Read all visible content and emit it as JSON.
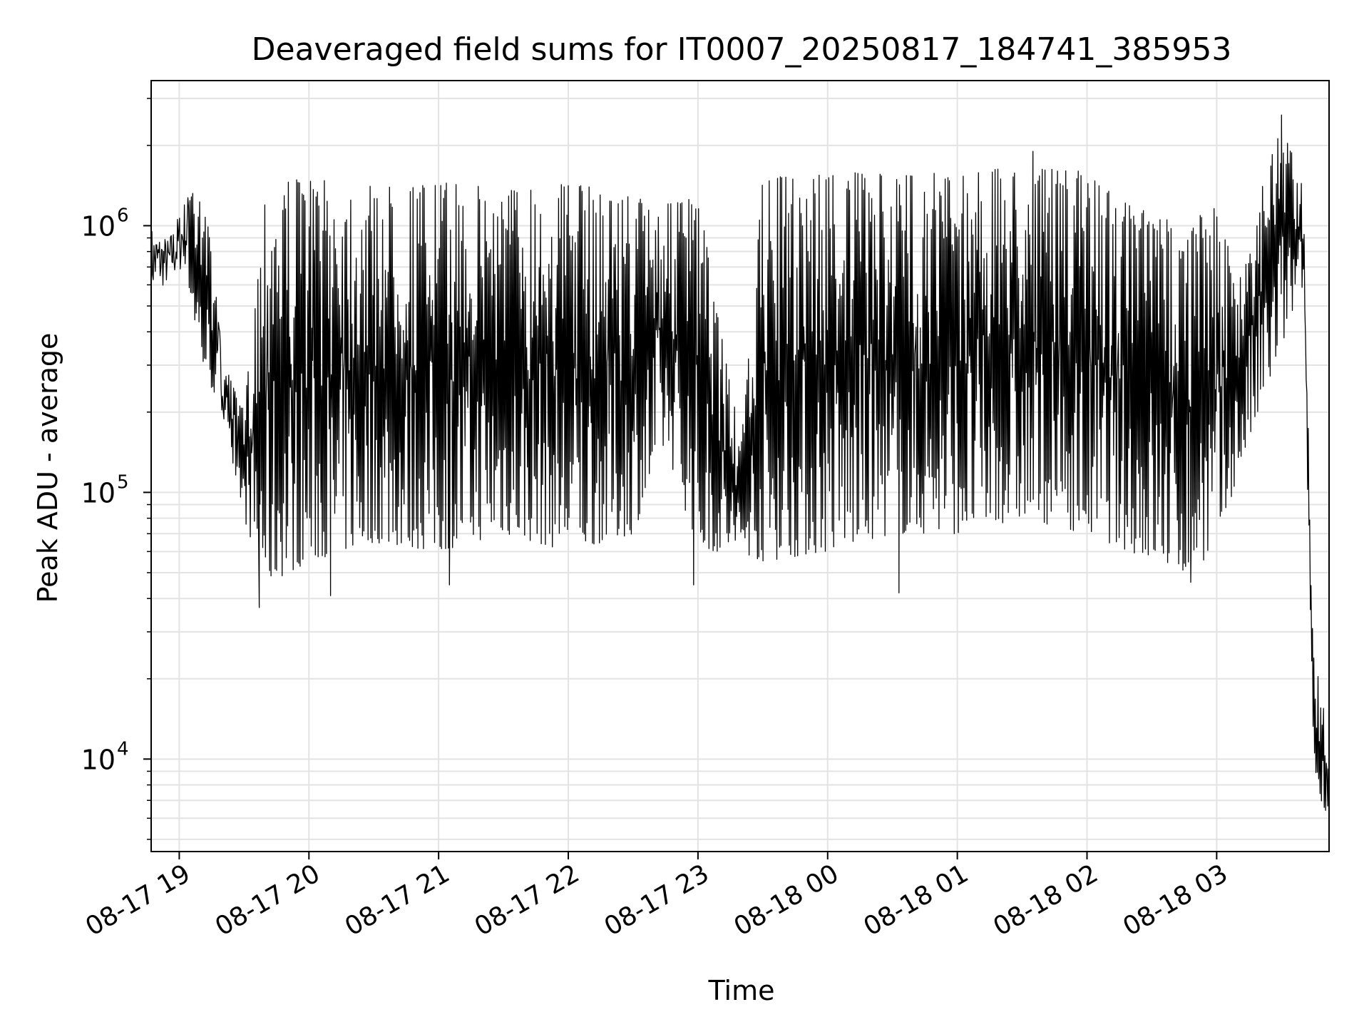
{
  "chart_data": {
    "type": "line",
    "title": "Deaveraged field sums for IT0007_20250817_184741_385953",
    "xlabel": "Time",
    "ylabel": "Peak ADU - average",
    "yscale": "log",
    "ylim": [
      4500,
      3500000
    ],
    "xlim": [
      "2025-08-17 18:47",
      "2025-08-18 03:52"
    ],
    "x_ticks": [
      "2025-08-17 19:00",
      "2025-08-17 20:00",
      "2025-08-17 21:00",
      "2025-08-17 22:00",
      "2025-08-17 23:00",
      "2025-08-18 00:00",
      "2025-08-18 01:00",
      "2025-08-18 02:00",
      "2025-08-18 03:00"
    ],
    "x_tick_labels": [
      "08-17 19",
      "08-17 20",
      "08-17 21",
      "08-17 22",
      "08-17 23",
      "08-18 00",
      "08-18 01",
      "08-18 02",
      "08-18 03"
    ],
    "y_tick_labels": [
      {
        "value": 10000,
        "base": "10",
        "exp": "4"
      },
      {
        "value": 100000,
        "base": "10",
        "exp": "5"
      },
      {
        "value": 1000000,
        "base": "10",
        "exp": "6"
      }
    ],
    "grid": true,
    "line_color": "#000000",
    "grid_color": "#e3e3e3",
    "envelope": [
      {
        "x": "2025-08-17 18:47",
        "low": 550000,
        "high": 1000000
      },
      {
        "x": "2025-08-17 18:55",
        "low": 600000,
        "high": 900000
      },
      {
        "x": "2025-08-17 19:03",
        "low": 700000,
        "high": 1300000
      },
      {
        "x": "2025-08-17 19:10",
        "low": 300000,
        "high": 1700000
      },
      {
        "x": "2025-08-17 19:20",
        "low": 200000,
        "high": 350000
      },
      {
        "x": "2025-08-17 19:30",
        "low": 80000,
        "high": 200000
      },
      {
        "x": "2025-08-17 19:40",
        "low": 45000,
        "high": 1500000
      },
      {
        "x": "2025-08-17 20:00",
        "low": 55000,
        "high": 1500000
      },
      {
        "x": "2025-08-17 20:30",
        "low": 65000,
        "high": 1400000
      },
      {
        "x": "2025-08-17 21:00",
        "low": 60000,
        "high": 1450000
      },
      {
        "x": "2025-08-17 21:30",
        "low": 70000,
        "high": 1400000
      },
      {
        "x": "2025-08-17 22:00",
        "low": 60000,
        "high": 1450000
      },
      {
        "x": "2025-08-17 22:30",
        "low": 70000,
        "high": 1300000
      },
      {
        "x": "2025-08-17 22:45",
        "low": 150000,
        "high": 1200000
      },
      {
        "x": "2025-08-17 23:00",
        "low": 60000,
        "high": 1300000
      },
      {
        "x": "2025-08-17 23:20",
        "low": 60000,
        "high": 150000
      },
      {
        "x": "2025-08-17 23:30",
        "low": 55000,
        "high": 1500000
      },
      {
        "x": "2025-08-18 00:00",
        "low": 60000,
        "high": 1600000
      },
      {
        "x": "2025-08-18 00:30",
        "low": 70000,
        "high": 1550000
      },
      {
        "x": "2025-08-18 01:00",
        "low": 70000,
        "high": 1600000
      },
      {
        "x": "2025-08-18 01:30",
        "low": 80000,
        "high": 1650000
      },
      {
        "x": "2025-08-18 02:00",
        "low": 70000,
        "high": 1600000
      },
      {
        "x": "2025-08-18 02:20",
        "low": 60000,
        "high": 1200000
      },
      {
        "x": "2025-08-18 02:45",
        "low": 50000,
        "high": 1000000
      },
      {
        "x": "2025-08-18 03:00",
        "low": 60000,
        "high": 1200000
      },
      {
        "x": "2025-08-18 03:10",
        "low": 120000,
        "high": 600000
      },
      {
        "x": "2025-08-18 03:20",
        "low": 200000,
        "high": 1400000
      },
      {
        "x": "2025-08-18 03:30",
        "low": 350000,
        "high": 2500000
      },
      {
        "x": "2025-08-18 03:40",
        "low": 600000,
        "high": 1400000
      },
      {
        "x": "2025-08-18 03:45",
        "low": 8000,
        "high": 25000
      },
      {
        "x": "2025-08-18 03:52",
        "low": 6000,
        "high": 12000
      }
    ],
    "spikes": [
      {
        "x": "2025-08-17 19:37",
        "y": 37000
      },
      {
        "x": "2025-08-17 20:10",
        "y": 41000
      },
      {
        "x": "2025-08-17 21:05",
        "y": 45000
      },
      {
        "x": "2025-08-17 22:58",
        "y": 45000
      },
      {
        "x": "2025-08-18 00:33",
        "y": 42000
      },
      {
        "x": "2025-08-18 02:48",
        "y": 46000
      },
      {
        "x": "2025-08-18 03:30",
        "y": 2600000
      },
      {
        "x": "2025-08-18 01:35",
        "y": 1900000
      }
    ]
  }
}
